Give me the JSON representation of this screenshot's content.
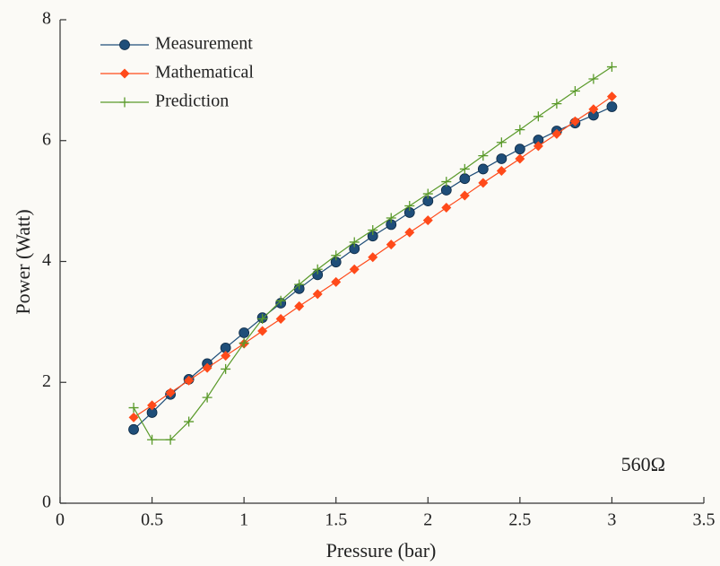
{
  "chart_data": {
    "type": "line",
    "x_label": "Pressure (bar)",
    "y_label": "Power (Watt)",
    "annotation": "560Ω",
    "x": [
      0.4,
      0.5,
      0.6,
      0.7,
      0.8,
      0.9,
      1.0,
      1.1,
      1.2,
      1.3,
      1.4,
      1.5,
      1.6,
      1.7,
      1.8,
      1.9,
      2.0,
      2.1,
      2.2,
      2.3,
      2.4,
      2.5,
      2.6,
      2.7,
      2.8,
      2.9,
      3.0
    ],
    "series": [
      {
        "name": "Measurement",
        "color": "#1f4e79",
        "marker": "circle",
        "values": [
          1.22,
          1.5,
          1.8,
          2.05,
          2.31,
          2.57,
          2.82,
          3.07,
          3.31,
          3.55,
          3.78,
          3.99,
          4.21,
          4.42,
          4.61,
          4.81,
          5.0,
          5.18,
          5.37,
          5.53,
          5.7,
          5.86,
          6.01,
          6.16,
          6.29,
          6.42,
          6.56
        ]
      },
      {
        "name": "Mathematical",
        "color": "#ff4a1a",
        "marker": "diamond",
        "values": [
          1.42,
          1.62,
          1.83,
          2.03,
          2.24,
          2.44,
          2.64,
          2.85,
          3.05,
          3.26,
          3.46,
          3.66,
          3.87,
          4.07,
          4.28,
          4.48,
          4.68,
          4.89,
          5.09,
          5.3,
          5.5,
          5.7,
          5.91,
          6.11,
          6.32,
          6.52,
          6.73
        ]
      },
      {
        "name": "Prediction",
        "color": "#5a9a2a",
        "marker": "plus",
        "values": [
          1.58,
          1.05,
          1.05,
          1.35,
          1.75,
          2.22,
          2.65,
          3.05,
          3.35,
          3.62,
          3.87,
          4.1,
          4.32,
          4.52,
          4.72,
          4.92,
          5.12,
          5.32,
          5.53,
          5.75,
          5.97,
          6.18,
          6.4,
          6.61,
          6.82,
          7.02,
          7.22
        ]
      }
    ],
    "xlim": [
      0,
      3.5
    ],
    "xticks": [
      0,
      0.5,
      1,
      1.5,
      2,
      2.5,
      3,
      3.5
    ],
    "ylim": [
      0,
      8
    ],
    "yticks": [
      0,
      2,
      4,
      6,
      8
    ],
    "legend": "upper-left"
  }
}
